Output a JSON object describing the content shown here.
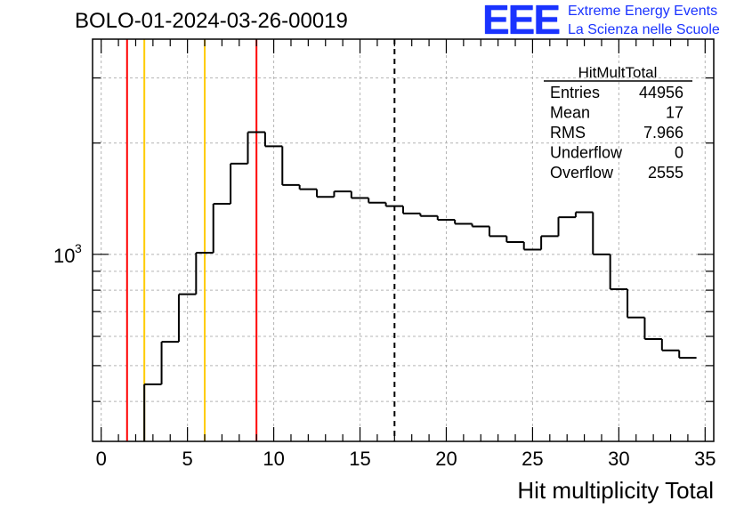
{
  "header": {
    "title": "BOLO-01-2024-03-26-00019",
    "logo_mark": "EEE",
    "logo_line1": "Extreme Energy Events",
    "logo_line2": "La Scienza nelle Scuole"
  },
  "stats_box": {
    "title": "HitMultTotal",
    "rows": [
      {
        "label": "Entries",
        "value": "44956"
      },
      {
        "label": "Mean",
        "value": "17"
      },
      {
        "label": "RMS",
        "value": "7.966"
      },
      {
        "label": "Underflow",
        "value": "0"
      },
      {
        "label": "Overflow",
        "value": "2555"
      }
    ]
  },
  "colors": {
    "histogram": "#000000",
    "red_line": "#ff0000",
    "yellow_line": "#ffcc00",
    "mean_line": "#000000",
    "logo": "#1a33ff"
  },
  "chart_data": {
    "type": "histogram",
    "title": "BOLO-01-2024-03-26-00019",
    "xlabel": "Hit multiplicity Total",
    "ylabel": "",
    "x_scale": "linear",
    "y_scale": "log",
    "xlim": [
      -0.5,
      35.5
    ],
    "ylim": [
      312,
      3820
    ],
    "grid": true,
    "x_ticks": [
      0,
      5,
      10,
      15,
      20,
      25,
      30,
      35
    ],
    "y_major_tick_label": {
      "base": "10",
      "exponent": "3",
      "value": 1000
    },
    "bin_edges_start": 2.5,
    "bin_width": 1,
    "bin_values": [
      445,
      580,
      780,
      1010,
      1370,
      1760,
      2140,
      1960,
      1540,
      1500,
      1430,
      1480,
      1420,
      1380,
      1350,
      1290,
      1270,
      1240,
      1210,
      1190,
      1120,
      1080,
      1030,
      1120,
      1260,
      1300,
      1000,
      805,
      675,
      590,
      550,
      525
    ],
    "vertical_lines": [
      {
        "x": 1.5,
        "color": "red",
        "style": "solid"
      },
      {
        "x": 2.5,
        "color": "yellow",
        "style": "solid"
      },
      {
        "x": 6,
        "color": "yellow",
        "style": "solid"
      },
      {
        "x": 9,
        "color": "red",
        "style": "solid"
      },
      {
        "x": 17,
        "color": "black",
        "style": "dashed"
      }
    ]
  }
}
